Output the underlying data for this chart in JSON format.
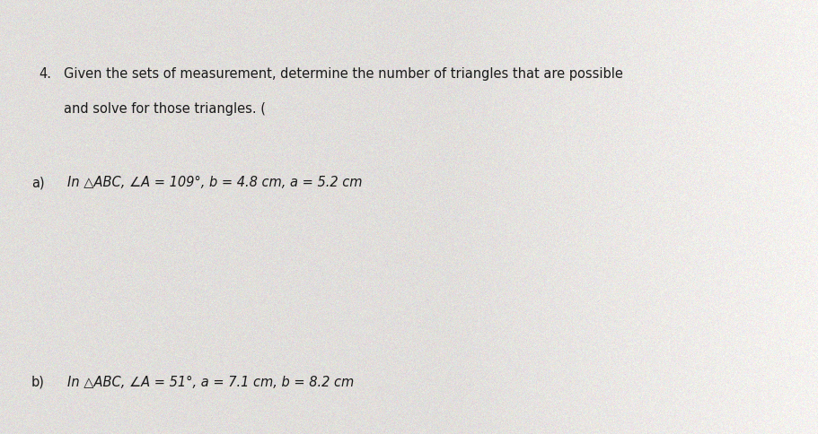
{
  "background_color": "#e8e4e0",
  "text_color": "#1a1a1a",
  "question_number": "4.",
  "line1": "Given the sets of measurement, determine the number of triangles that are possible",
  "line2": "and solve for those triangles. (",
  "part_a_label": "a)",
  "part_a_text": "In △ABC, ∠A = 109°, b = 4.8 cm, a = 5.2 cm",
  "part_b_label": "b)",
  "part_b_text": "In △ABC, ∠A = 51°, a = 7.1 cm, b = 8.2 cm",
  "fig_width": 9.12,
  "fig_height": 4.84,
  "dpi": 100
}
